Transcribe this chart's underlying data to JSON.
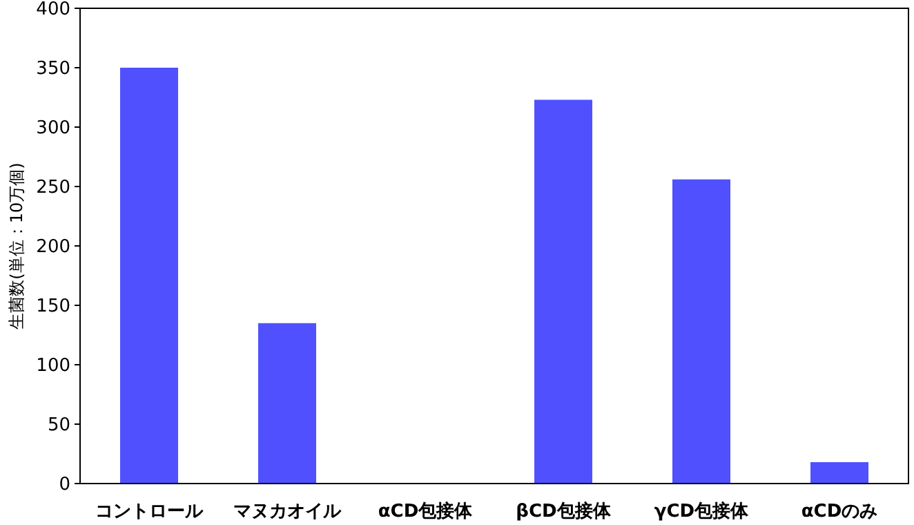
{
  "chart_data": {
    "type": "bar",
    "ylabel": "生菌数(単位：10万個)",
    "categories": [
      "コントロール",
      "マヌカオイル",
      "αCD包接体",
      "βCD包接体",
      "γCD包接体",
      "αCDのみ"
    ],
    "values": [
      350,
      135,
      0,
      323,
      256,
      18
    ],
    "color": "#5050ff",
    "ylim": [
      0,
      400
    ],
    "yticks": [
      0,
      50,
      100,
      150,
      200,
      250,
      300,
      350,
      400
    ]
  }
}
